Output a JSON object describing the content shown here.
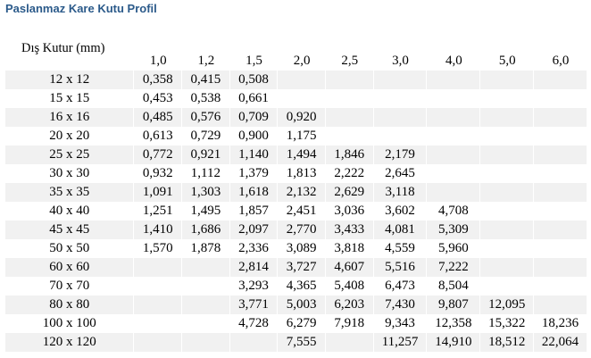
{
  "page": {
    "title": "Paslanmaz Kare Kutu Profil",
    "thickness_label": "Dış Kutur (mm)"
  },
  "table": {
    "columns": [
      "1,0",
      "1,2",
      "1,5",
      "2,0",
      "2,5",
      "3,0",
      "4,0",
      "5,0",
      "6,0"
    ],
    "rows": [
      {
        "size": "12 x 12",
        "values": [
          "0,358",
          "0,415",
          "0,508",
          "",
          "",
          "",
          "",
          "",
          ""
        ]
      },
      {
        "size": "15 x 15",
        "values": [
          "0,453",
          "0,538",
          "0,661",
          "",
          "",
          "",
          "",
          "",
          ""
        ]
      },
      {
        "size": "16 x 16",
        "values": [
          "0,485",
          "0,576",
          "0,709",
          "0,920",
          "",
          "",
          "",
          "",
          ""
        ]
      },
      {
        "size": "20 x 20",
        "values": [
          "0,613",
          "0,729",
          "0,900",
          "1,175",
          "",
          "",
          "",
          "",
          ""
        ]
      },
      {
        "size": "25 x 25",
        "values": [
          "0,772",
          "0,921",
          "1,140",
          "1,494",
          "1,846",
          "2,179",
          "",
          "",
          ""
        ]
      },
      {
        "size": "30 x 30",
        "values": [
          "0,932",
          "1,112",
          "1,379",
          "1,813",
          "2,222",
          "2,645",
          "",
          "",
          ""
        ]
      },
      {
        "size": "35 x 35",
        "values": [
          "1,091",
          "1,303",
          "1,618",
          "2,132",
          "2,629",
          "3,118",
          "",
          "",
          ""
        ]
      },
      {
        "size": "40 x 40",
        "values": [
          "1,251",
          "1,495",
          "1,857",
          "2,451",
          "3,036",
          "3,602",
          "4,708",
          "",
          ""
        ]
      },
      {
        "size": "45 x 45",
        "values": [
          "1,410",
          "1,686",
          "2,097",
          "2,770",
          "3,433",
          "4,081",
          "5,309",
          "",
          ""
        ]
      },
      {
        "size": "50 x 50",
        "values": [
          "1,570",
          "1,878",
          "2,336",
          "3,089",
          "3,818",
          "4,559",
          "5,960",
          "",
          ""
        ]
      },
      {
        "size": "60 x 60",
        "values": [
          "",
          "",
          "2,814",
          "3,727",
          "4,607",
          "5,516",
          "7,222",
          "",
          ""
        ]
      },
      {
        "size": "70 x 70",
        "values": [
          "",
          "",
          "3,293",
          "4,365",
          "5,408",
          "6,473",
          "8,504",
          "",
          ""
        ]
      },
      {
        "size": "80 x 80",
        "values": [
          "",
          "",
          "3,771",
          "5,003",
          "6,203",
          "7,430",
          "9,807",
          "12,095",
          ""
        ]
      },
      {
        "size": "100 x 100",
        "values": [
          "",
          "",
          "4,728",
          "6,279",
          "7,918",
          "9,343",
          "12,358",
          "15,322",
          "18,236"
        ]
      },
      {
        "size": "120 x 120",
        "values": [
          "",
          "",
          "",
          "7,555",
          "",
          "11,257",
          "14,910",
          "18,512",
          "22,064"
        ]
      }
    ]
  }
}
